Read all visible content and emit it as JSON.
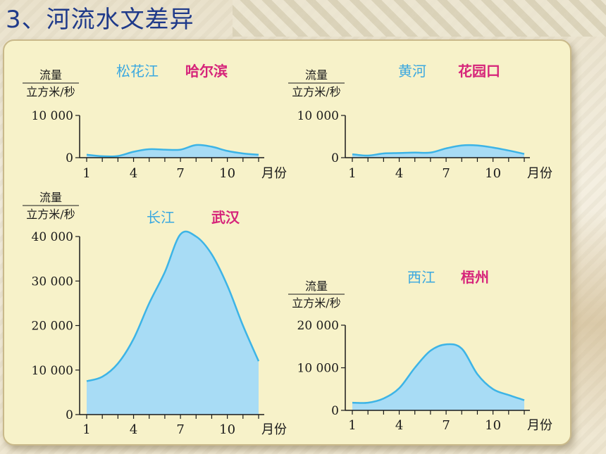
{
  "slide": {
    "title": "3、河流水文差异"
  },
  "colors": {
    "curve": "#3db4e6",
    "fill": "#a8dcf5",
    "axis": "#1a1a1a",
    "river_name": "#3aa8e0",
    "station": "#d6247a",
    "title": "#1f3a8a"
  },
  "chart_data": [
    {
      "type": "area",
      "river": "松花江",
      "station": "哈尔滨",
      "ylabel_top": "流量",
      "ylabel_bottom": "立方米/秒",
      "xlabel": "月份",
      "ytick_labels": [
        "10 000",
        "0"
      ],
      "xtick_labels": [
        "1",
        "4",
        "7",
        "10"
      ],
      "ylim": [
        0,
        10000
      ],
      "x": [
        1,
        2,
        3,
        4,
        5,
        6,
        7,
        8,
        9,
        10,
        11,
        12
      ],
      "values": [
        700,
        350,
        400,
        1400,
        2000,
        1900,
        1900,
        3000,
        2600,
        1600,
        1000,
        700
      ]
    },
    {
      "type": "area",
      "river": "黄河",
      "station": "花园口",
      "ylabel_top": "流量",
      "ylabel_bottom": "立方米/秒",
      "xlabel": "月份",
      "ytick_labels": [
        "10 000",
        "0"
      ],
      "xtick_labels": [
        "1",
        "4",
        "7",
        "10"
      ],
      "ylim": [
        0,
        10000
      ],
      "x": [
        1,
        2,
        3,
        4,
        5,
        6,
        7,
        8,
        9,
        10,
        11,
        12
      ],
      "values": [
        800,
        500,
        1000,
        1100,
        1200,
        1200,
        2200,
        2900,
        2900,
        2400,
        1700,
        900
      ]
    },
    {
      "type": "area",
      "river": "长江",
      "station": "武汉",
      "ylabel_top": "流量",
      "ylabel_bottom": "立方米/秒",
      "xlabel": "月份",
      "ytick_labels": [
        "40 000",
        "30 000",
        "20 000",
        "10 000",
        "0"
      ],
      "xtick_labels": [
        "1",
        "4",
        "7",
        "10"
      ],
      "ylim": [
        0,
        40000
      ],
      "x": [
        1,
        2,
        3,
        4,
        5,
        6,
        7,
        8,
        9,
        10,
        11,
        12
      ],
      "values": [
        7500,
        8500,
        11500,
        17000,
        25000,
        32000,
        40500,
        40000,
        36000,
        29000,
        20000,
        12000
      ]
    },
    {
      "type": "area",
      "river": "西江",
      "station": "梧州",
      "ylabel_top": "流量",
      "ylabel_bottom": "立方米/秒",
      "xlabel": "月份",
      "ytick_labels": [
        "20 000",
        "10 000",
        "0"
      ],
      "xtick_labels": [
        "1",
        "4",
        "7",
        "10"
      ],
      "ylim": [
        0,
        20000
      ],
      "x": [
        1,
        2,
        3,
        4,
        5,
        6,
        7,
        8,
        9,
        10,
        11,
        12
      ],
      "values": [
        1800,
        1800,
        2800,
        5200,
        10000,
        14000,
        15500,
        14500,
        8500,
        5000,
        3600,
        2400
      ]
    }
  ]
}
